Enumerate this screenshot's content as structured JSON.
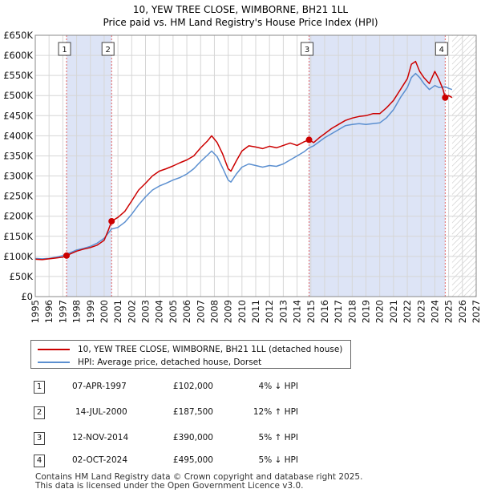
{
  "chart_data": {
    "type": "line",
    "title": "10, YEW TREE CLOSE, WIMBORNE, BH21 1LL",
    "subtitle": "Price paid vs. HM Land Registry's House Price Index (HPI)",
    "xlabel": "",
    "ylabel": "",
    "xlim": [
      1995,
      2027
    ],
    "ylim": [
      0,
      650000
    ],
    "x_ticks": [
      1995,
      1996,
      1997,
      1998,
      1999,
      2000,
      2001,
      2002,
      2003,
      2004,
      2005,
      2006,
      2007,
      2008,
      2009,
      2010,
      2011,
      2012,
      2013,
      2014,
      2015,
      2016,
      2017,
      2018,
      2019,
      2020,
      2021,
      2022,
      2023,
      2024,
      2025,
      2026,
      2027
    ],
    "y_ticks": [
      {
        "value": 0,
        "label": "£0"
      },
      {
        "value": 50000,
        "label": "£50K"
      },
      {
        "value": 100000,
        "label": "£100K"
      },
      {
        "value": 150000,
        "label": "£150K"
      },
      {
        "value": 200000,
        "label": "£200K"
      },
      {
        "value": 250000,
        "label": "£250K"
      },
      {
        "value": 300000,
        "label": "£300K"
      },
      {
        "value": 350000,
        "label": "£350K"
      },
      {
        "value": 400000,
        "label": "£400K"
      },
      {
        "value": 450000,
        "label": "£450K"
      },
      {
        "value": 500000,
        "label": "£500K"
      },
      {
        "value": 550000,
        "label": "£550K"
      },
      {
        "value": 600000,
        "label": "£600K"
      },
      {
        "value": 650000,
        "label": "£650K"
      }
    ],
    "grid": true,
    "shaded_periods": [
      [
        1997.27,
        2000.54
      ],
      [
        2014.87,
        2024.75
      ]
    ],
    "forecast_hatch_from": 2025.25,
    "series": [
      {
        "name": "10, YEW TREE CLOSE, WIMBORNE, BH21 1LL (detached house)",
        "color": "#cc0000",
        "x": [
          1995.0,
          1995.5,
          1996.0,
          1996.5,
          1997.0,
          1997.27,
          1997.6,
          1998.0,
          1998.5,
          1999.0,
          1999.5,
          2000.0,
          2000.3,
          2000.54,
          2000.8,
          2001.0,
          2001.5,
          2002.0,
          2002.5,
          2003.0,
          2003.5,
          2004.0,
          2004.5,
          2005.0,
          2005.5,
          2006.0,
          2006.5,
          2007.0,
          2007.5,
          2007.8,
          2008.2,
          2008.6,
          2009.0,
          2009.2,
          2009.6,
          2010.0,
          2010.5,
          2011.0,
          2011.5,
          2012.0,
          2012.5,
          2013.0,
          2013.5,
          2014.0,
          2014.5,
          2014.87,
          2015.2,
          2015.6,
          2016.0,
          2016.5,
          2017.0,
          2017.5,
          2018.0,
          2018.5,
          2019.0,
          2019.5,
          2020.0,
          2020.5,
          2021.0,
          2021.5,
          2022.0,
          2022.3,
          2022.6,
          2022.9,
          2023.2,
          2023.6,
          2024.0,
          2024.3,
          2024.6,
          2024.75,
          2025.0,
          2025.25
        ],
        "values": [
          93000,
          92000,
          94000,
          96000,
          98000,
          102000,
          107000,
          113000,
          118000,
          122000,
          128000,
          140000,
          165000,
          187500,
          193000,
          197000,
          212000,
          238000,
          265000,
          282000,
          300000,
          312000,
          318000,
          325000,
          333000,
          340000,
          350000,
          370000,
          387000,
          400000,
          383000,
          355000,
          318000,
          312000,
          338000,
          362000,
          375000,
          372000,
          368000,
          374000,
          370000,
          376000,
          382000,
          376000,
          385000,
          390000,
          383000,
          395000,
          405000,
          418000,
          428000,
          438000,
          444000,
          448000,
          450000,
          455000,
          455000,
          470000,
          488000,
          515000,
          542000,
          578000,
          585000,
          560000,
          545000,
          530000,
          560000,
          540000,
          515000,
          495000,
          500000,
          495000
        ]
      },
      {
        "name": "HPI: Average price, detached house, Dorset",
        "color": "#5b8fd0",
        "x": [
          1995.0,
          1995.5,
          1996.0,
          1996.5,
          1997.0,
          1997.27,
          1997.6,
          1998.0,
          1998.5,
          1999.0,
          1999.5,
          2000.0,
          2000.54,
          2001.0,
          2001.5,
          2002.0,
          2002.5,
          2003.0,
          2003.5,
          2004.0,
          2004.5,
          2005.0,
          2005.5,
          2006.0,
          2006.5,
          2007.0,
          2007.5,
          2007.8,
          2008.2,
          2008.6,
          2009.0,
          2009.2,
          2009.6,
          2010.0,
          2010.5,
          2011.0,
          2011.5,
          2012.0,
          2012.5,
          2013.0,
          2013.5,
          2014.0,
          2014.5,
          2014.87,
          2015.2,
          2015.6,
          2016.0,
          2016.5,
          2017.0,
          2017.5,
          2018.0,
          2018.5,
          2019.0,
          2019.5,
          2020.0,
          2020.5,
          2021.0,
          2021.5,
          2022.0,
          2022.3,
          2022.6,
          2022.9,
          2023.2,
          2023.6,
          2024.0,
          2024.3,
          2024.75,
          2025.0,
          2025.25
        ],
        "values": [
          95000,
          94000,
          95000,
          98000,
          102000,
          106000,
          110000,
          116000,
          120000,
          125000,
          133000,
          145000,
          168000,
          172000,
          185000,
          205000,
          228000,
          248000,
          265000,
          275000,
          282000,
          290000,
          296000,
          305000,
          318000,
          336000,
          352000,
          362000,
          348000,
          320000,
          290000,
          285000,
          305000,
          322000,
          330000,
          326000,
          322000,
          326000,
          324000,
          330000,
          340000,
          350000,
          360000,
          370000,
          375000,
          385000,
          395000,
          405000,
          415000,
          425000,
          428000,
          430000,
          428000,
          430000,
          432000,
          445000,
          465000,
          495000,
          520000,
          545000,
          555000,
          545000,
          530000,
          515000,
          525000,
          520000,
          522000,
          518000,
          515000
        ]
      }
    ],
    "transactions": [
      {
        "id": "1",
        "date": "07-APR-1997",
        "price": "£102,000",
        "hpi": "4% ↓ HPI",
        "x": 1997.27,
        "value": 102000
      },
      {
        "id": "2",
        "date": "14-JUL-2000",
        "price": "£187,500",
        "hpi": "12% ↑ HPI",
        "x": 2000.54,
        "value": 187500
      },
      {
        "id": "3",
        "date": "12-NOV-2014",
        "price": "£390,000",
        "hpi": "5% ↑ HPI",
        "x": 2014.87,
        "value": 390000
      },
      {
        "id": "4",
        "date": "02-OCT-2024",
        "price": "£495,000",
        "hpi": "5% ↓ HPI",
        "x": 2024.75,
        "value": 495000
      }
    ]
  },
  "legend": {
    "house_label": "10, YEW TREE CLOSE, WIMBORNE, BH21 1LL (detached house)",
    "hpi_label": "HPI: Average price, detached house, Dorset"
  },
  "footer": {
    "line1": "Contains HM Land Registry data © Crown copyright and database right 2025.",
    "line2": "This data is licensed under the Open Government Licence v3.0."
  }
}
